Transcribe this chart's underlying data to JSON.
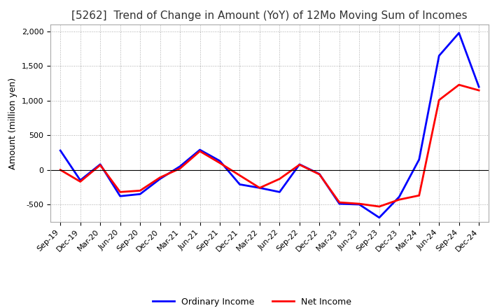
{
  "title": "[5262]  Trend of Change in Amount (YoY) of 12Mo Moving Sum of Incomes",
  "ylabel": "Amount (million yen)",
  "x_labels": [
    "Sep-19",
    "Dec-19",
    "Mar-20",
    "Jun-20",
    "Sep-20",
    "Dec-20",
    "Mar-21",
    "Jun-21",
    "Sep-21",
    "Dec-21",
    "Mar-22",
    "Jun-22",
    "Sep-22",
    "Dec-22",
    "Mar-23",
    "Jun-23",
    "Sep-23",
    "Dec-23",
    "Mar-24",
    "Jun-24",
    "Sep-24",
    "Dec-24"
  ],
  "ordinary_income": [
    280,
    -150,
    80,
    -380,
    -350,
    -130,
    50,
    290,
    130,
    -210,
    -260,
    -320,
    80,
    -60,
    -490,
    -500,
    -690,
    -390,
    150,
    1650,
    1980,
    1200
  ],
  "net_income": [
    0,
    -170,
    70,
    -320,
    -300,
    -110,
    20,
    270,
    100,
    -80,
    -260,
    -130,
    75,
    -65,
    -470,
    -490,
    -530,
    -430,
    -370,
    1010,
    1230,
    1150
  ],
  "ordinary_color": "#0000ff",
  "net_color": "#ff0000",
  "ylim": [
    -750,
    2100
  ],
  "yticks": [
    -500,
    0,
    500,
    1000,
    1500,
    2000
  ],
  "bg_color": "#ffffff",
  "grid_color": "#aaaaaa",
  "legend_ordinary": "Ordinary Income",
  "legend_net": "Net Income",
  "title_fontsize": 11,
  "ylabel_fontsize": 9,
  "tick_fontsize": 8,
  "legend_fontsize": 9,
  "linewidth": 2.0
}
